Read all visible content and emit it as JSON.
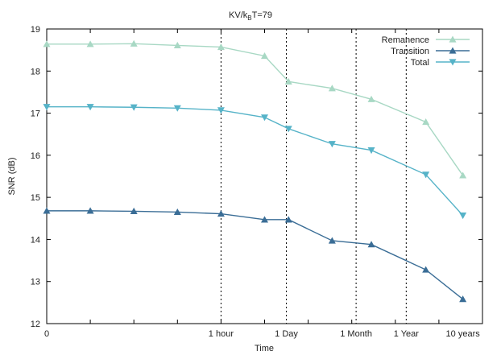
{
  "chart_data": {
    "type": "line",
    "title": {
      "main": "KV/k",
      "sub": "B",
      "tail": "T=79"
    },
    "xlabel": "Time",
    "ylabel": "SNR (dB)",
    "ylim": [
      12,
      19
    ],
    "yticks": [
      "12",
      "13",
      "14",
      "15",
      "16",
      "17",
      "18",
      "19"
    ],
    "x_categories": [
      0,
      1,
      2,
      3,
      4,
      5,
      6,
      7,
      8,
      9,
      10
    ],
    "x_tick_labels": [
      {
        "label": "0",
        "at": 0
      },
      {
        "label": "1 hour",
        "at": 4
      },
      {
        "label": "1 Day",
        "at": 5.5
      },
      {
        "label": "1 Month",
        "at": 7.1
      },
      {
        "label": "1 Year",
        "at": 8.25
      },
      {
        "label": "10 years",
        "at": 9.55
      }
    ],
    "vlines_at": [
      4,
      5.5,
      7.1,
      8.25
    ],
    "grid": false,
    "legend_position": "top-right",
    "series": [
      {
        "name": "Remanence",
        "marker": "triangle-up",
        "color": "#a8d8c4",
        "x": [
          0,
          1,
          2,
          3,
          4,
          5,
          5.55,
          6.55,
          7.45,
          8.7,
          9.55
        ],
        "values": [
          18.64,
          18.64,
          18.65,
          18.61,
          18.57,
          18.36,
          17.75,
          17.59,
          17.33,
          16.79,
          15.52
        ]
      },
      {
        "name": "Transition",
        "marker": "triangle-up",
        "color": "#3a6d96",
        "x": [
          0,
          1,
          2,
          3,
          4,
          5,
          5.55,
          6.55,
          7.45,
          8.7,
          9.55
        ],
        "values": [
          14.68,
          14.68,
          14.67,
          14.65,
          14.61,
          14.47,
          14.47,
          13.97,
          13.88,
          13.28,
          12.58
        ]
      },
      {
        "name": "Total",
        "marker": "triangle-down",
        "color": "#56b3c8",
        "x": [
          0,
          1,
          2,
          3,
          4,
          5,
          5.55,
          6.55,
          7.45,
          8.7,
          9.55
        ],
        "values": [
          17.15,
          17.15,
          17.14,
          17.12,
          17.07,
          16.9,
          16.63,
          16.27,
          16.12,
          15.54,
          14.57
        ]
      }
    ]
  }
}
